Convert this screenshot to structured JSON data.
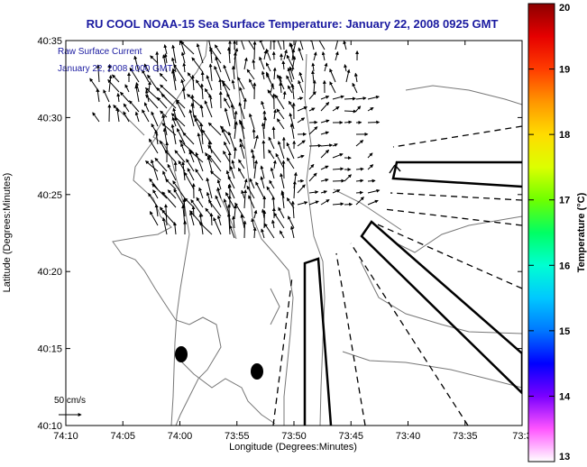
{
  "chart_data": {
    "type": "map",
    "title": "RU COOL  NOAA-15  Sea Surface Temperature:  January 22, 2008 0925 GMT",
    "annotation_lines": [
      "Raw Surface Current",
      "January 22, 2008 1000 GMT"
    ],
    "xlabel": "Longitude (Degrees:Minutes)",
    "ylabel": "Latitude (Degrees:Minutes)",
    "x_ticks": [
      "74:10",
      "74:05",
      "74:00",
      "73:55",
      "73:50",
      "73:45",
      "73:40",
      "73:35",
      "73:3"
    ],
    "y_ticks": [
      "40:10",
      "40:15",
      "40:20",
      "40:25",
      "40:30",
      "40:35"
    ],
    "xlim_minutes_west": [
      10,
      -30
    ],
    "ylim_minutes": [
      10,
      35
    ],
    "colorbar": {
      "label": "Temperature (°C)",
      "min": 13,
      "max": 20,
      "ticks": [
        "13",
        "14",
        "15",
        "16",
        "17",
        "18",
        "19",
        "20"
      ],
      "colors": [
        "#ffffff",
        "#ff55ff",
        "#7a00ff",
        "#0000ff",
        "#0077ff",
        "#00c8ff",
        "#00ffd2",
        "#00ff64",
        "#6eff00",
        "#dcff00",
        "#ffdc00",
        "#ff9600",
        "#ff3c00",
        "#e60000",
        "#8c0000"
      ]
    },
    "scale_label": "50 cm/s"
  }
}
